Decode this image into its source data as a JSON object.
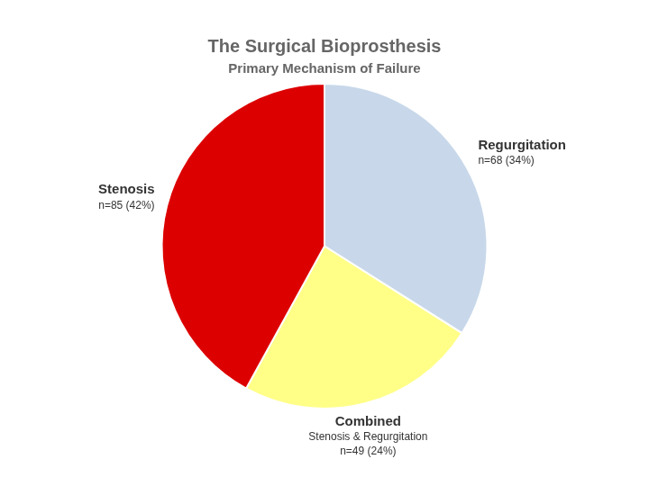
{
  "chart_data": {
    "type": "pie",
    "title": "The Surgical Bioprosthesis",
    "subtitle": "Primary Mechanism of Failure",
    "categories": [
      "Regurgitation",
      "Combined",
      "Stenosis"
    ],
    "values": [
      34,
      24,
      42
    ],
    "colors": [
      "#C8D8EA",
      "#FFFF88",
      "#DD0000"
    ],
    "data_labels": true,
    "value_labels": [
      "n=68 (34%)",
      "n=49 (24%)",
      "n=85 (42%)"
    ],
    "annotations": [
      {
        "text": "Stenosis & Regurgitation",
        "category": "Combined"
      }
    ],
    "legend": false
  }
}
